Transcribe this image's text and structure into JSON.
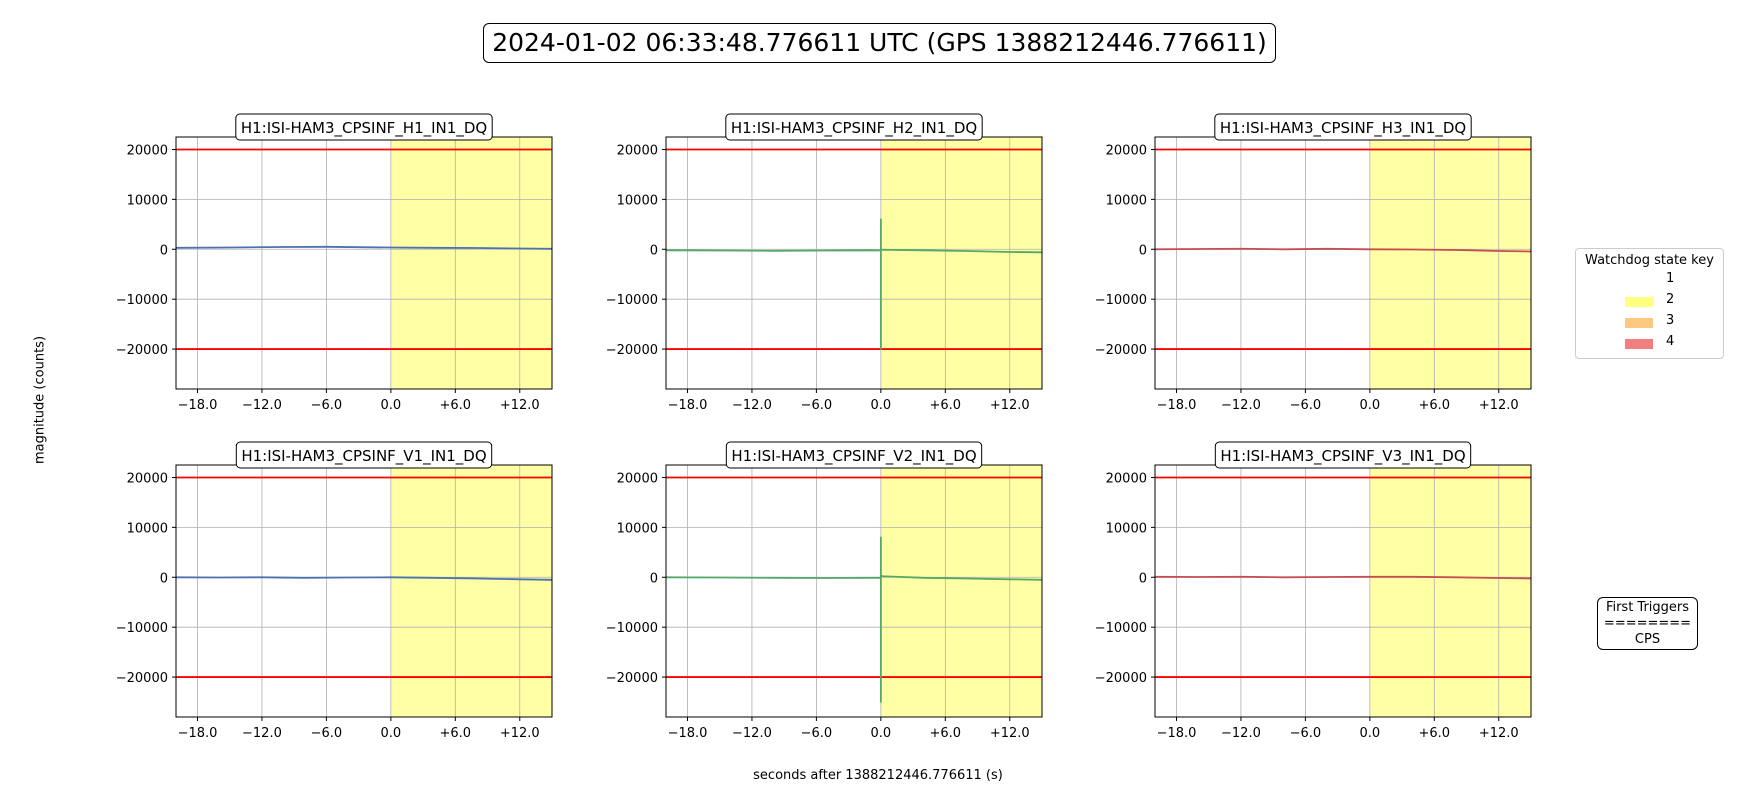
{
  "header": {
    "title": "2024-01-02 06:33:48.776611 UTC (GPS 1388212446.776611)"
  },
  "axes": {
    "ylabel": "magnitude (counts)",
    "xlabel": "seconds after 1388212446.776611 (s)"
  },
  "legend": {
    "title": "Watchdog state key",
    "items": [
      {
        "label": "1",
        "color": "#ffffff"
      },
      {
        "label": "2",
        "color": "#ffff80"
      },
      {
        "label": "3",
        "color": "#ffc880"
      },
      {
        "label": "4",
        "color": "#f08080"
      }
    ]
  },
  "triggers": {
    "title": "First Triggers",
    "separator": "========",
    "value": "CPS"
  },
  "chart_data": [
    {
      "type": "line",
      "title": "H1:ISI-HAM3_CPSINF_H1_IN1_DQ",
      "color": "#4c72b0",
      "xlim": [
        -20,
        15
      ],
      "ylim": [
        -28000,
        22500
      ],
      "thresholds": [
        20000,
        -20000
      ],
      "shaded": {
        "from": 0,
        "to": 15,
        "state": "2"
      },
      "xticks": [
        -18,
        -12,
        -6,
        0,
        6,
        12
      ],
      "xticklabels": [
        "−18.0",
        "−12.0",
        "−6.0",
        "0.0",
        "+6.0",
        "+12.0"
      ],
      "yticks": [
        20000,
        10000,
        0,
        -10000,
        -20000
      ],
      "yticklabels": [
        "20000",
        "10000",
        "0",
        "−10000",
        "−20000"
      ],
      "series": [
        {
          "x": [
            -20,
            -15,
            -10,
            -6,
            -2,
            0,
            4,
            8,
            12,
            15
          ],
          "y": [
            300,
            350,
            450,
            500,
            400,
            350,
            300,
            250,
            150,
            100
          ]
        }
      ]
    },
    {
      "type": "line",
      "title": "H1:ISI-HAM3_CPSINF_H2_IN1_DQ",
      "color": "#55a868",
      "xlim": [
        -20,
        15
      ],
      "ylim": [
        -28000,
        22500
      ],
      "thresholds": [
        20000,
        -20000
      ],
      "shaded": {
        "from": 0,
        "to": 15,
        "state": "2"
      },
      "xticks": [
        -18,
        -12,
        -6,
        0,
        6,
        12
      ],
      "xticklabels": [
        "−18.0",
        "−12.0",
        "−6.0",
        "0.0",
        "+6.0",
        "+12.0"
      ],
      "yticks": [
        20000,
        10000,
        0,
        -10000,
        -20000
      ],
      "yticklabels": [
        "20000",
        "10000",
        "0",
        "−10000",
        "−20000"
      ],
      "series": [
        {
          "x": [
            -20,
            -15,
            -10,
            -5,
            -1,
            0,
            0,
            0,
            0,
            0.2,
            4,
            8,
            12,
            15
          ],
          "y": [
            -200,
            -250,
            -300,
            -250,
            -200,
            -250,
            6000,
            -20000,
            -100,
            -100,
            -200,
            -350,
            -550,
            -600
          ]
        }
      ]
    },
    {
      "type": "line",
      "title": "H1:ISI-HAM3_CPSINF_H3_IN1_DQ",
      "color": "#c44e52",
      "xlim": [
        -20,
        15
      ],
      "ylim": [
        -28000,
        22500
      ],
      "thresholds": [
        20000,
        -20000
      ],
      "shaded": {
        "from": 0,
        "to": 15,
        "state": "2"
      },
      "xticks": [
        -18,
        -12,
        -6,
        0,
        6,
        12
      ],
      "xticklabels": [
        "−18.0",
        "−12.0",
        "−6.0",
        "0.0",
        "+6.0",
        "+12.0"
      ],
      "yticks": [
        20000,
        10000,
        0,
        -10000,
        -20000
      ],
      "yticklabels": [
        "20000",
        "10000",
        "0",
        "−10000",
        "−20000"
      ],
      "series": [
        {
          "x": [
            -20,
            -16,
            -12,
            -8,
            -4,
            0,
            4,
            8,
            12,
            15
          ],
          "y": [
            0,
            50,
            100,
            0,
            100,
            0,
            -50,
            -150,
            -350,
            -450
          ]
        }
      ]
    },
    {
      "type": "line",
      "title": "H1:ISI-HAM3_CPSINF_V1_IN1_DQ",
      "color": "#4c72b0",
      "xlim": [
        -20,
        15
      ],
      "ylim": [
        -28000,
        22500
      ],
      "thresholds": [
        20000,
        -20000
      ],
      "shaded": {
        "from": 0,
        "to": 15,
        "state": "2"
      },
      "xticks": [
        -18,
        -12,
        -6,
        0,
        6,
        12
      ],
      "xticklabels": [
        "−18.0",
        "−12.0",
        "−6.0",
        "0.0",
        "+6.0",
        "+12.0"
      ],
      "yticks": [
        20000,
        10000,
        0,
        -10000,
        -20000
      ],
      "yticklabels": [
        "20000",
        "10000",
        "0",
        "−10000",
        "−20000"
      ],
      "series": [
        {
          "x": [
            -20,
            -16,
            -12,
            -8,
            -4,
            0,
            4,
            8,
            12,
            15
          ],
          "y": [
            0,
            -50,
            0,
            -100,
            -50,
            0,
            -100,
            -250,
            -400,
            -500
          ]
        }
      ]
    },
    {
      "type": "line",
      "title": "H1:ISI-HAM3_CPSINF_V2_IN1_DQ",
      "color": "#55a868",
      "xlim": [
        -20,
        15
      ],
      "ylim": [
        -28000,
        22500
      ],
      "thresholds": [
        20000,
        -20000
      ],
      "shaded": {
        "from": 0,
        "to": 15,
        "state": "2"
      },
      "xticks": [
        -18,
        -12,
        -6,
        0,
        6,
        12
      ],
      "xticklabels": [
        "−18.0",
        "−12.0",
        "−6.0",
        "0.0",
        "+6.0",
        "+12.0"
      ],
      "yticks": [
        20000,
        10000,
        0,
        -10000,
        -20000
      ],
      "yticklabels": [
        "20000",
        "10000",
        "0",
        "−10000",
        "−20000"
      ],
      "series": [
        {
          "x": [
            -20,
            -15,
            -10,
            -5,
            -1,
            0,
            0,
            0,
            0,
            0.2,
            4,
            8,
            12,
            15
          ],
          "y": [
            0,
            -50,
            -100,
            -150,
            -100,
            -100,
            8000,
            -25000,
            300,
            200,
            -100,
            -250,
            -400,
            -500
          ]
        }
      ]
    },
    {
      "type": "line",
      "title": "H1:ISI-HAM3_CPSINF_V3_IN1_DQ",
      "color": "#c44e52",
      "xlim": [
        -20,
        15
      ],
      "ylim": [
        -28000,
        22500
      ],
      "thresholds": [
        20000,
        -20000
      ],
      "shaded": {
        "from": 0,
        "to": 15,
        "state": "2"
      },
      "xticks": [
        -18,
        -12,
        -6,
        0,
        6,
        12
      ],
      "xticklabels": [
        "−18.0",
        "−12.0",
        "−6.0",
        "0.0",
        "+6.0",
        "+12.0"
      ],
      "yticks": [
        20000,
        10000,
        0,
        -10000,
        -20000
      ],
      "yticklabels": [
        "20000",
        "10000",
        "0",
        "−10000",
        "−20000"
      ],
      "series": [
        {
          "x": [
            -20,
            -16,
            -12,
            -8,
            -4,
            0,
            4,
            8,
            12,
            15
          ],
          "y": [
            100,
            50,
            100,
            0,
            50,
            100,
            100,
            0,
            -150,
            -250
          ]
        }
      ]
    }
  ]
}
